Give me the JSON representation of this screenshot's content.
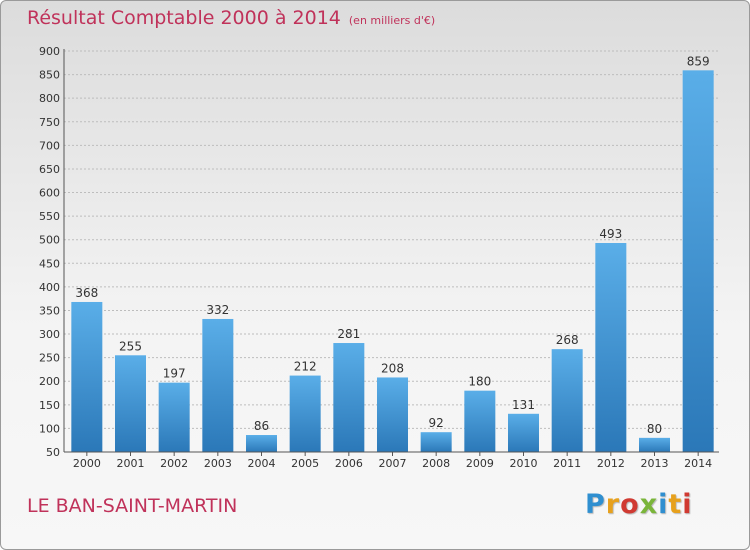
{
  "header": {
    "title": "Résultat Comptable 2000 à 2014",
    "unit": "(en milliers d'€)"
  },
  "footer": {
    "commune": "LE BAN-SAINT-MARTIN",
    "logo_letters": [
      "P",
      "r",
      "o",
      "x",
      "i",
      "t",
      "i"
    ]
  },
  "colors": {
    "title": "#c0325a",
    "bar_top": "#5aaee8",
    "bar_bottom": "#2b78b8",
    "logo": [
      "#2f8fd0",
      "#e7a11d",
      "#d03a32",
      "#7ab53a"
    ]
  },
  "chart_data": {
    "type": "bar",
    "title": "Résultat Comptable 2000 à 2014",
    "categories": [
      "2000",
      "2001",
      "2002",
      "2003",
      "2004",
      "2005",
      "2006",
      "2007",
      "2008",
      "2009",
      "2010",
      "2011",
      "2012",
      "2013",
      "2014"
    ],
    "values": [
      368,
      255,
      197,
      332,
      86,
      212,
      281,
      208,
      92,
      180,
      131,
      268,
      493,
      80,
      859
    ],
    "ylim": [
      50,
      900
    ],
    "yticks": [
      50,
      100,
      150,
      200,
      250,
      300,
      350,
      400,
      450,
      500,
      550,
      600,
      650,
      700,
      750,
      800,
      850,
      900
    ],
    "grid": true,
    "legend": "none"
  }
}
